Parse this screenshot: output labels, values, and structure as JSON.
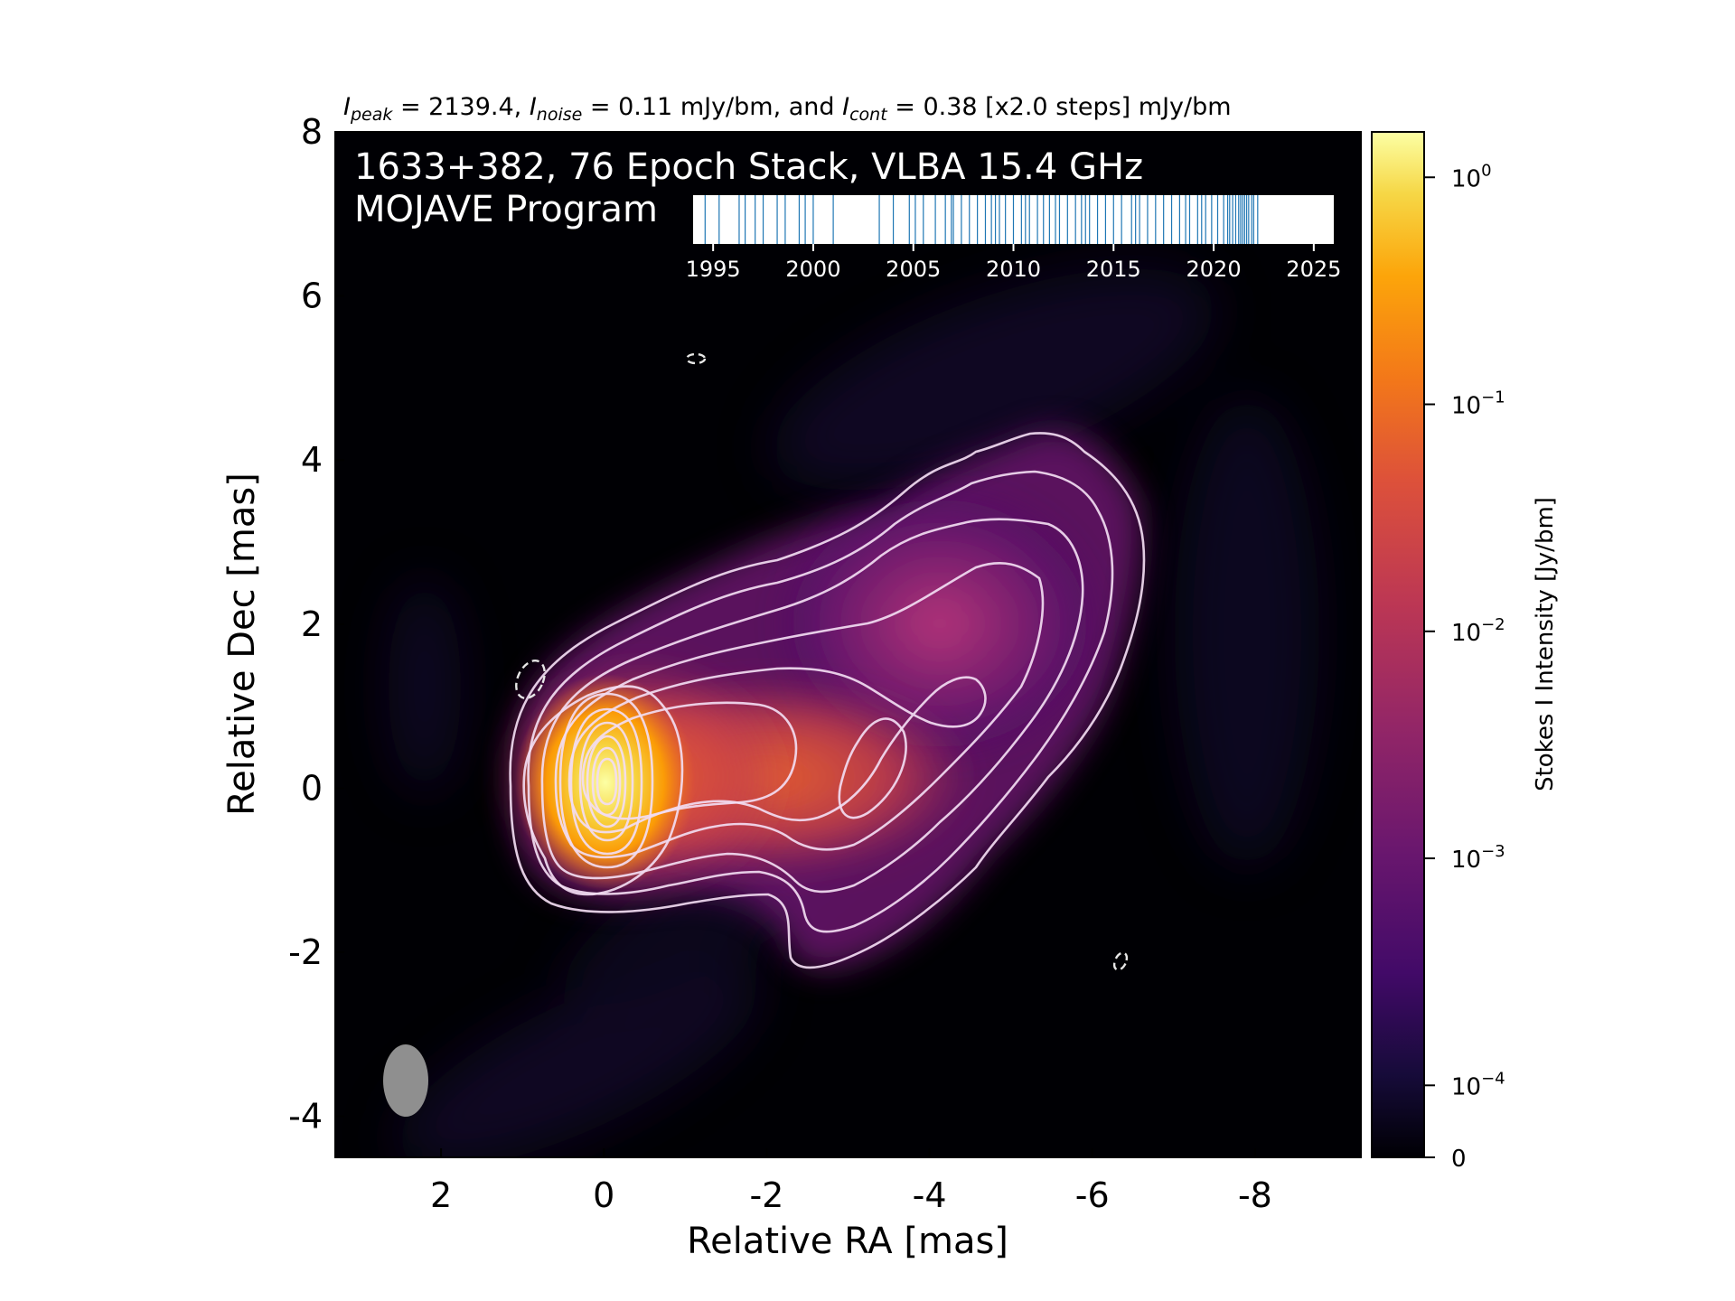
{
  "chart_data": {
    "type": "heatmap",
    "header": {
      "peak_label": "I",
      "peak_sub": "peak",
      "peak_value": " = 2139.4, ",
      "noise_label": "I",
      "noise_sub": "noise",
      "noise_value": " = 0.11 mJy/bm, and ",
      "cont_label": "I",
      "cont_sub": "cont",
      "cont_value": " = 0.38 [x2.0 steps] mJy/bm"
    },
    "overlay_title_line1": "1633+382, 76 Epoch Stack, VLBA 15.4 GHz",
    "overlay_title_line2": "MOJAVE Program",
    "xlabel": "Relative RA [mas]",
    "ylabel": "Relative Dec [mas]",
    "xlim": [
      3.3,
      -9.3
    ],
    "ylim": [
      -4.5,
      8.0
    ],
    "xticks": [
      {
        "value": 2,
        "label": "2"
      },
      {
        "value": 0,
        "label": "0"
      },
      {
        "value": -2,
        "label": "-2"
      },
      {
        "value": -4,
        "label": "-4"
      },
      {
        "value": -6,
        "label": "-6"
      },
      {
        "value": -8,
        "label": "-8"
      }
    ],
    "yticks": [
      {
        "value": 8,
        "label": "8"
      },
      {
        "value": 6,
        "label": "6"
      },
      {
        "value": 4,
        "label": "4"
      },
      {
        "value": 2,
        "label": "2"
      },
      {
        "value": 0,
        "label": "0"
      },
      {
        "value": -2,
        "label": "-2"
      },
      {
        "value": -4,
        "label": "-4"
      }
    ],
    "colorbar": {
      "label": "Stokes I Intensity [Jy/bm]",
      "scale": "log",
      "colormap": "inferno",
      "ticks": [
        {
          "base": "10",
          "exp": "0",
          "value": 1.0
        },
        {
          "base": "10",
          "exp": "−1",
          "value": 0.1
        },
        {
          "base": "10",
          "exp": "−2",
          "value": 0.01
        },
        {
          "base": "10",
          "exp": "−3",
          "value": 0.001
        },
        {
          "base": "10",
          "exp": "−4",
          "value": 0.0001
        },
        {
          "base": "0",
          "exp": "",
          "value": 0
        }
      ]
    },
    "timeline": {
      "year_ticks": [
        "1995",
        "2000",
        "2005",
        "2010",
        "2015",
        "2020",
        "2025"
      ],
      "xlim": [
        1994,
        2026
      ],
      "epoch_color": "#1f77b4",
      "epochs": [
        1994.6,
        1995.3,
        1996.3,
        1996.6,
        1997.1,
        1997.5,
        1998.2,
        1998.6,
        1999.3,
        1999.6,
        2000.0,
        2001.0,
        2003.3,
        2004.0,
        2004.8,
        2005.1,
        2005.5,
        2006.1,
        2006.6,
        2007.0,
        2007.4,
        2007.8,
        2008.2,
        2008.6,
        2009.1,
        2009.3,
        2009.6,
        2010.0,
        2010.4,
        2010.8,
        2011.2,
        2011.5,
        2011.8,
        2012.1,
        2012.3,
        2012.7,
        2013.1,
        2013.4,
        2013.8,
        2014.2,
        2014.6,
        2015.0,
        2015.4,
        2015.9,
        2016.3,
        2016.7,
        2017.1,
        2017.5,
        2017.9,
        2018.3,
        2018.8,
        2019.2,
        2019.6,
        2019.9,
        2020.2,
        2020.5,
        2020.7,
        2020.8,
        2020.95,
        2021.1,
        2021.25,
        2021.35,
        2021.45,
        2021.55,
        2021.65,
        2021.75,
        2021.9,
        2022.0,
        2022.2,
        2019.4,
        2018.6,
        2016.1,
        2013.6,
        2010.6,
        2008.9,
        2006.9
      ],
      "epoch_count_label": "76 Epoch"
    },
    "beam": {
      "color": "#8f8f8f"
    },
    "contour_color": "#f2dcf2"
  }
}
